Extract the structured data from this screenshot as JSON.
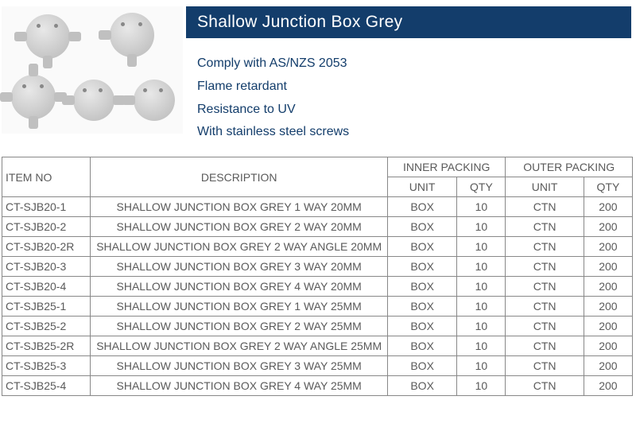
{
  "title": "Shallow Junction Box Grey",
  "features": [
    "Comply with AS/NZS 2053",
    "Flame retardant",
    "Resistance to UV",
    "With stainless steel screws"
  ],
  "table": {
    "headers": {
      "item_no": "ITEM NO",
      "description": "DESCRIPTION",
      "inner_packing": "INNER PACKING",
      "outer_packing": "OUTER PACKING",
      "unit": "UNIT",
      "qty": "QTY"
    },
    "rows": [
      {
        "item": "CT-SJB20-1",
        "desc": "SHALLOW JUNCTION BOX GREY 1 WAY 20MM",
        "iu": "BOX",
        "iq": "10",
        "ou": "CTN",
        "oq": "200"
      },
      {
        "item": "CT-SJB20-2",
        "desc": "SHALLOW JUNCTION BOX GREY 2 WAY 20MM",
        "iu": "BOX",
        "iq": "10",
        "ou": "CTN",
        "oq": "200"
      },
      {
        "item": "CT-SJB20-2R",
        "desc": "SHALLOW JUNCTION BOX GREY 2 WAY ANGLE 20MM",
        "iu": "BOX",
        "iq": "10",
        "ou": "CTN",
        "oq": "200"
      },
      {
        "item": "CT-SJB20-3",
        "desc": "SHALLOW JUNCTION BOX GREY 3 WAY 20MM",
        "iu": "BOX",
        "iq": "10",
        "ou": "CTN",
        "oq": "200"
      },
      {
        "item": "CT-SJB20-4",
        "desc": "SHALLOW JUNCTION BOX GREY 4 WAY 20MM",
        "iu": "BOX",
        "iq": "10",
        "ou": "CTN",
        "oq": "200"
      },
      {
        "item": "CT-SJB25-1",
        "desc": "SHALLOW JUNCTION BOX GREY 1 WAY 25MM",
        "iu": "BOX",
        "iq": "10",
        "ou": "CTN",
        "oq": "200"
      },
      {
        "item": "CT-SJB25-2",
        "desc": "SHALLOW JUNCTION BOX GREY 2 WAY 25MM",
        "iu": "BOX",
        "iq": "10",
        "ou": "CTN",
        "oq": "200"
      },
      {
        "item": "CT-SJB25-2R",
        "desc": "SHALLOW JUNCTION BOX GREY 2 WAY ANGLE 25MM",
        "iu": "BOX",
        "iq": "10",
        "ou": "CTN",
        "oq": "200"
      },
      {
        "item": "CT-SJB25-3",
        "desc": "SHALLOW JUNCTION BOX GREY 3 WAY 25MM",
        "iu": "BOX",
        "iq": "10",
        "ou": "CTN",
        "oq": "200"
      },
      {
        "item": "CT-SJB25-4",
        "desc": "SHALLOW JUNCTION BOX GREY 4 WAY 25MM",
        "iu": "BOX",
        "iq": "10",
        "ou": "CTN",
        "oq": "200"
      }
    ]
  },
  "colors": {
    "title_bg": "#133d6b",
    "title_fg": "#ffffff",
    "feature_fg": "#133d6b",
    "cell_fg": "#5a5a5a",
    "border": "#888888"
  }
}
